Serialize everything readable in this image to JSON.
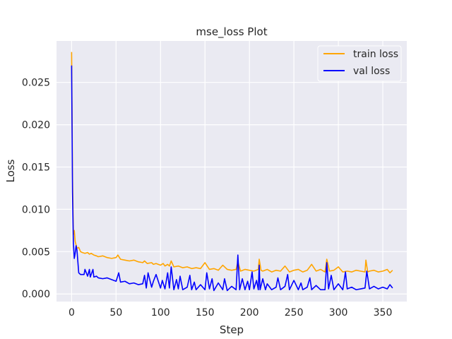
{
  "chart_data": {
    "type": "line",
    "title": "mse_loss Plot",
    "xlabel": "Step",
    "ylabel": "Loss",
    "xlim": [
      -17,
      377
    ],
    "ylim": [
      -0.0009,
      0.0299
    ],
    "xticks": [
      0,
      50,
      100,
      150,
      200,
      250,
      300,
      350
    ],
    "xtick_labels": [
      "0",
      "50",
      "100",
      "150",
      "200",
      "250",
      "300",
      "350"
    ],
    "yticks": [
      0.0,
      0.005,
      0.01,
      0.015,
      0.02,
      0.025
    ],
    "ytick_labels": [
      "0.000",
      "0.005",
      "0.010",
      "0.015",
      "0.020",
      "0.025"
    ],
    "grid": true,
    "legend_position": "top-right",
    "background": "#eaeaf2",
    "series": [
      {
        "name": "train loss",
        "color": "#ffa500",
        "x": [
          0,
          1,
          2,
          3,
          4,
          5,
          6,
          8,
          10,
          12,
          15,
          18,
          20,
          22,
          25,
          28,
          30,
          35,
          40,
          45,
          50,
          52,
          55,
          60,
          65,
          70,
          75,
          80,
          82,
          85,
          90,
          92,
          95,
          100,
          103,
          105,
          108,
          110,
          112,
          115,
          120,
          125,
          130,
          135,
          140,
          145,
          150,
          155,
          160,
          165,
          170,
          175,
          180,
          185,
          187,
          190,
          195,
          200,
          205,
          210,
          211,
          213,
          215,
          220,
          225,
          230,
          235,
          240,
          245,
          250,
          255,
          260,
          265,
          270,
          275,
          280,
          285,
          287,
          290,
          295,
          300,
          305,
          310,
          315,
          320,
          325,
          330,
          331,
          333,
          335,
          340,
          345,
          350,
          355,
          358,
          361
        ],
        "y": [
          0.0286,
          0.014,
          0.007,
          0.0075,
          0.0062,
          0.0058,
          0.0054,
          0.0055,
          0.005,
          0.0049,
          0.0048,
          0.0049,
          0.0047,
          0.0048,
          0.0046,
          0.0045,
          0.0044,
          0.0045,
          0.0043,
          0.0042,
          0.0043,
          0.0046,
          0.0041,
          0.004,
          0.0039,
          0.004,
          0.0038,
          0.0037,
          0.0039,
          0.0036,
          0.0037,
          0.0035,
          0.0036,
          0.0034,
          0.0036,
          0.0033,
          0.0035,
          0.0033,
          0.0039,
          0.0032,
          0.0033,
          0.0031,
          0.0032,
          0.003,
          0.0031,
          0.003,
          0.0037,
          0.0029,
          0.003,
          0.0028,
          0.0034,
          0.0029,
          0.0028,
          0.0029,
          0.0038,
          0.0027,
          0.0029,
          0.0028,
          0.0027,
          0.0029,
          0.0041,
          0.0028,
          0.0027,
          0.0029,
          0.0026,
          0.0028,
          0.0027,
          0.0033,
          0.0026,
          0.0028,
          0.0029,
          0.0026,
          0.0028,
          0.0035,
          0.0027,
          0.0029,
          0.0026,
          0.0041,
          0.0027,
          0.0028,
          0.0032,
          0.0026,
          0.0027,
          0.0026,
          0.0028,
          0.0027,
          0.0026,
          0.004,
          0.0026,
          0.0027,
          0.0028,
          0.0026,
          0.0027,
          0.0029,
          0.0025,
          0.0028
        ]
      },
      {
        "name": "val loss",
        "color": "#0000ff",
        "x": [
          0,
          1,
          2,
          3,
          4,
          5,
          6,
          8,
          10,
          14,
          15,
          18,
          20,
          21,
          24,
          25,
          28,
          30,
          35,
          40,
          45,
          50,
          53,
          55,
          60,
          65,
          70,
          75,
          80,
          82,
          84,
          86,
          90,
          92,
          95,
          100,
          102,
          105,
          108,
          110,
          112,
          115,
          118,
          120,
          122,
          125,
          130,
          133,
          135,
          138,
          140,
          145,
          150,
          152,
          155,
          158,
          160,
          165,
          170,
          172,
          175,
          180,
          185,
          187,
          189,
          192,
          195,
          198,
          200,
          203,
          205,
          208,
          210,
          211,
          212,
          215,
          218,
          220,
          225,
          230,
          232,
          235,
          240,
          243,
          245,
          250,
          255,
          258,
          260,
          265,
          268,
          270,
          275,
          280,
          285,
          287,
          289,
          292,
          295,
          300,
          305,
          308,
          310,
          315,
          320,
          325,
          330,
          332,
          335,
          340,
          345,
          350,
          355,
          358,
          361
        ],
        "y": [
          0.027,
          0.012,
          0.006,
          0.0042,
          0.0048,
          0.0057,
          0.0052,
          0.0025,
          0.0023,
          0.0023,
          0.0029,
          0.0021,
          0.0029,
          0.002,
          0.0029,
          0.002,
          0.0021,
          0.0019,
          0.0018,
          0.0019,
          0.0017,
          0.0015,
          0.0025,
          0.0014,
          0.0015,
          0.0012,
          0.0013,
          0.0011,
          0.0012,
          0.0022,
          0.0007,
          0.0025,
          0.0008,
          0.0015,
          0.0023,
          0.0007,
          0.0016,
          0.0006,
          0.0025,
          0.0007,
          0.0032,
          0.0005,
          0.0017,
          0.0006,
          0.0021,
          0.0005,
          0.0008,
          0.0022,
          0.0005,
          0.0014,
          0.0005,
          0.0011,
          0.0005,
          0.0025,
          0.0006,
          0.0018,
          0.0004,
          0.0013,
          0.0005,
          0.0018,
          0.0004,
          0.0009,
          0.0005,
          0.0046,
          0.0005,
          0.0018,
          0.0005,
          0.0015,
          0.0005,
          0.0026,
          0.0006,
          0.0016,
          0.0005,
          0.0034,
          0.0005,
          0.0018,
          0.0005,
          0.0012,
          0.0005,
          0.0008,
          0.0019,
          0.0005,
          0.0009,
          0.0023,
          0.0005,
          0.0016,
          0.0005,
          0.0013,
          0.0005,
          0.0008,
          0.0019,
          0.0005,
          0.001,
          0.0005,
          0.0005,
          0.0037,
          0.0006,
          0.0022,
          0.0005,
          0.0012,
          0.0005,
          0.0026,
          0.0006,
          0.0008,
          0.0005,
          0.0006,
          0.0007,
          0.0027,
          0.0006,
          0.0009,
          0.0006,
          0.0008,
          0.0006,
          0.0011,
          0.0007
        ]
      }
    ]
  }
}
